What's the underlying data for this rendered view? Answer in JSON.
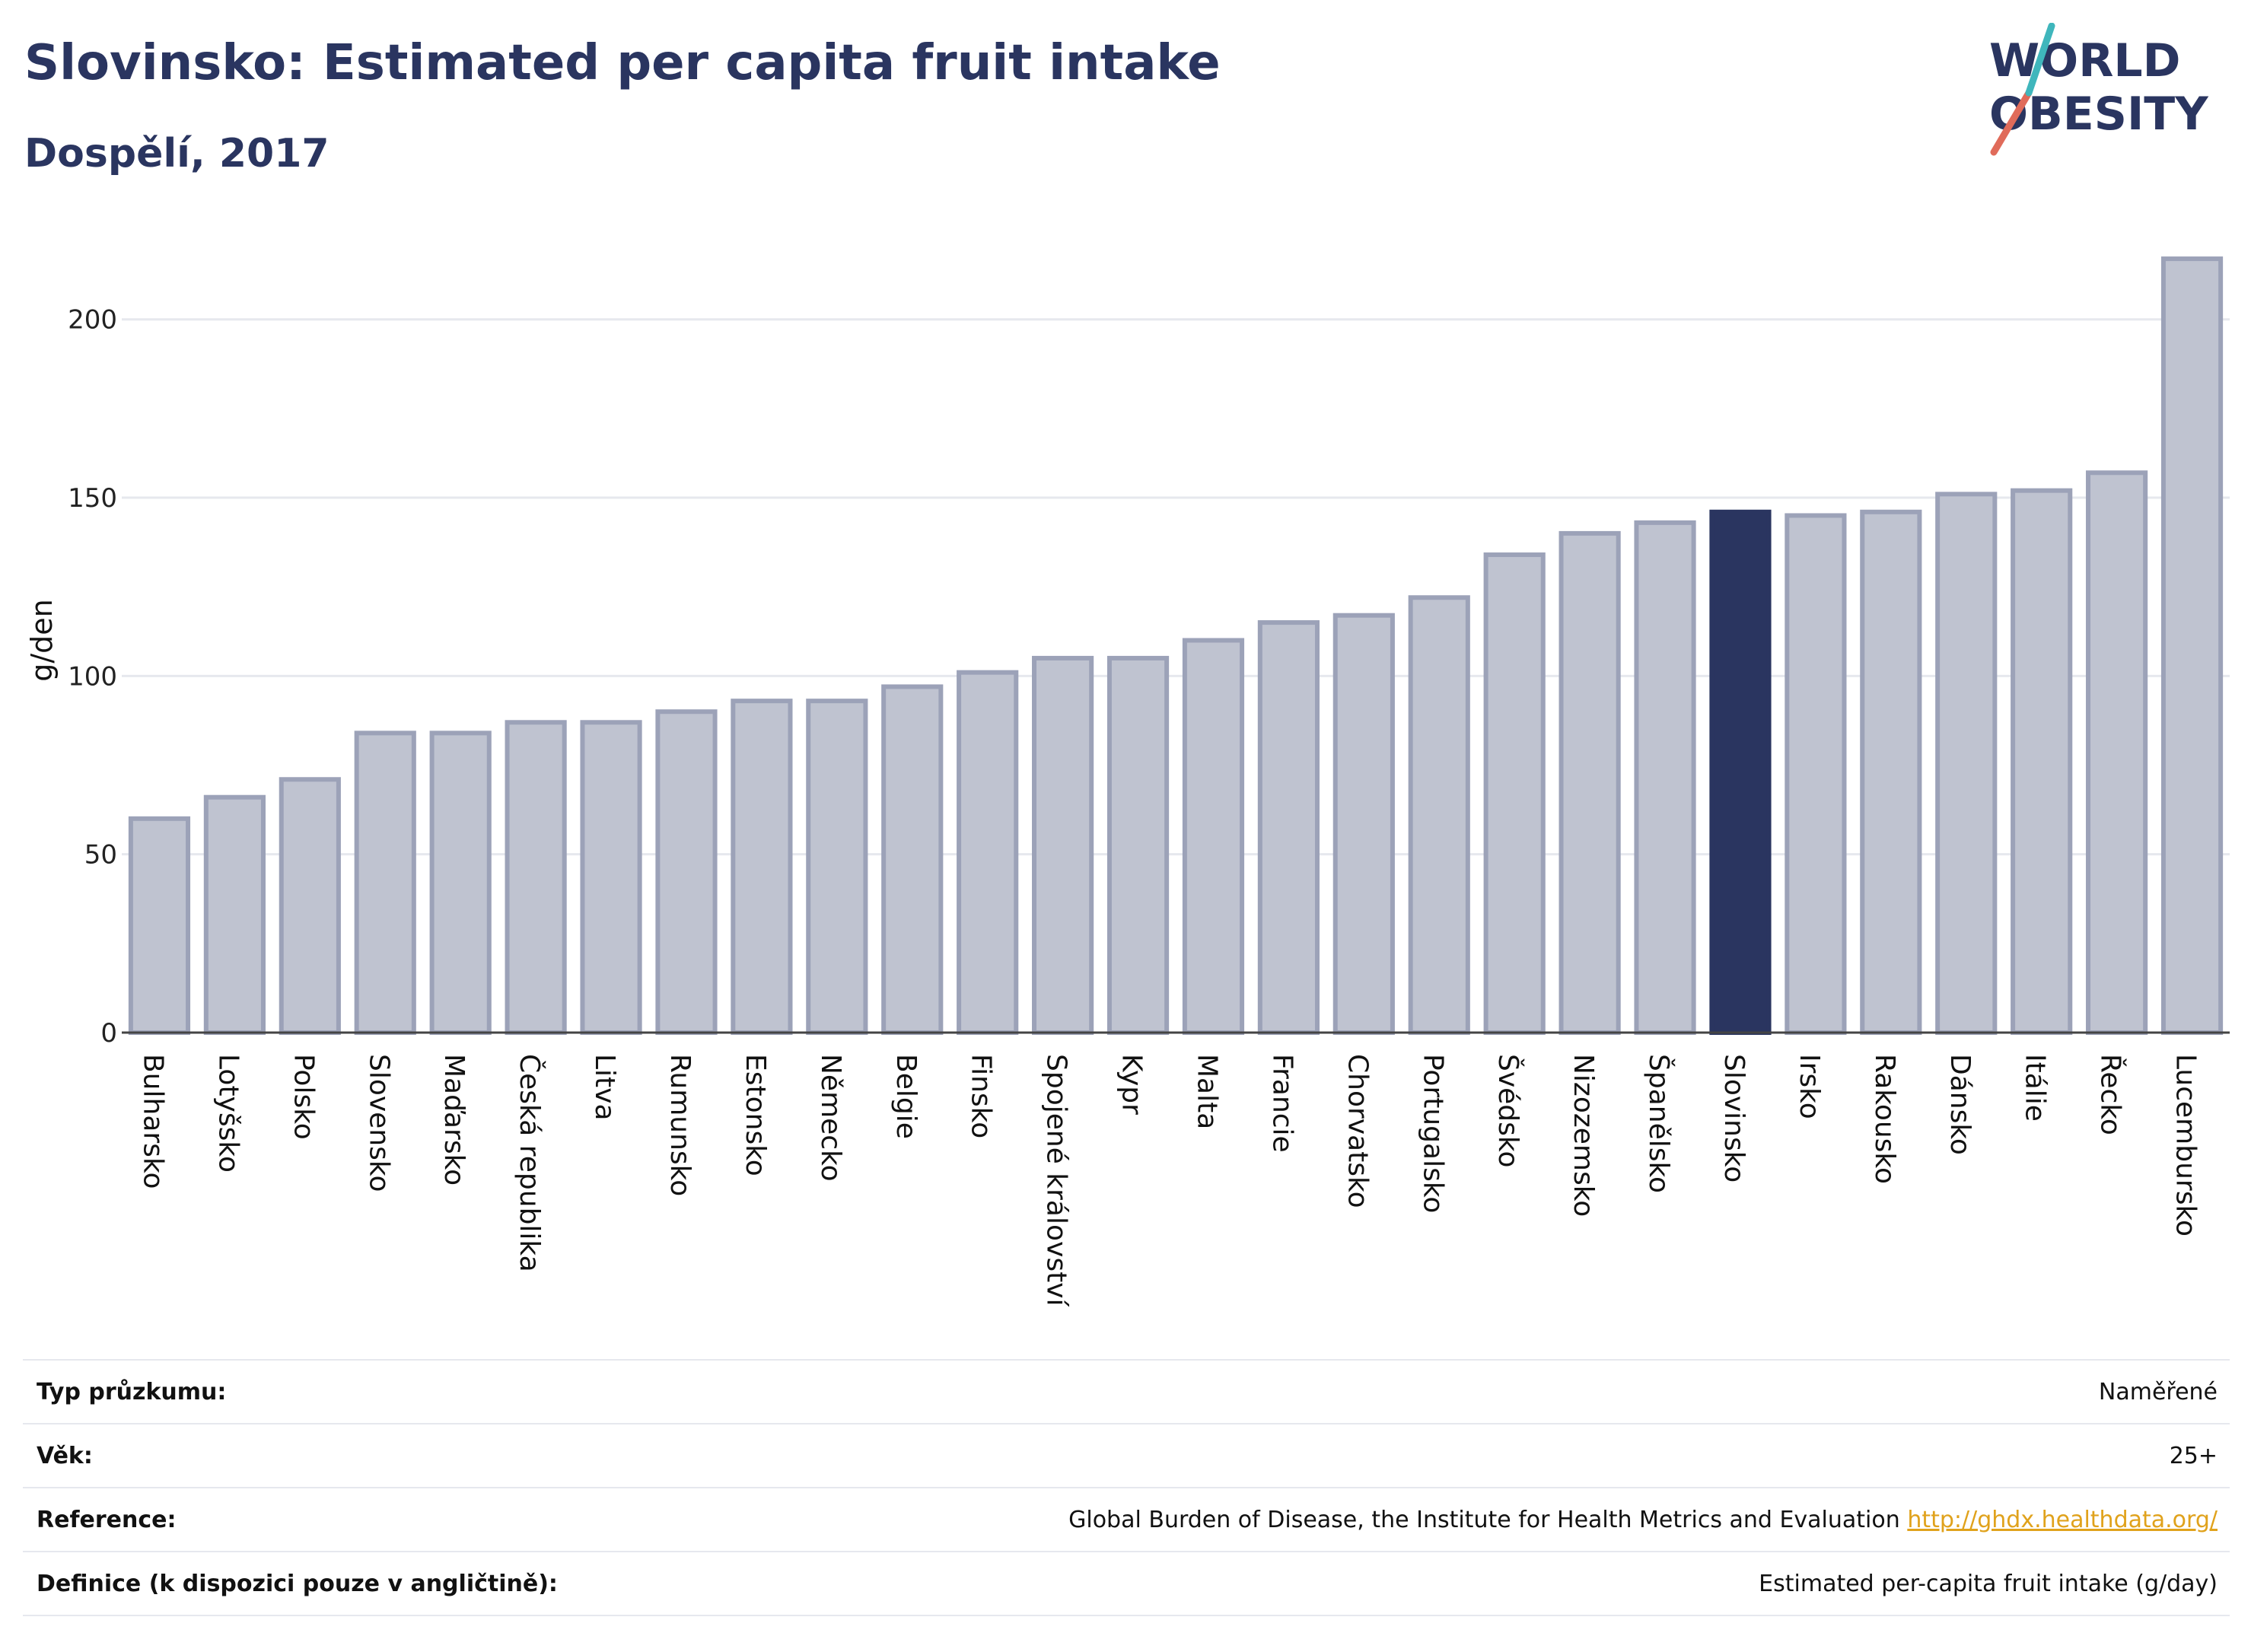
{
  "header": {
    "title": "Slovinsko: Estimated per capita fruit intake",
    "subtitle": "Dospělí, 2017"
  },
  "logo": {
    "line1": "WORLD",
    "line2": "OBESITY"
  },
  "colors": {
    "highlight_bar": "#2a3560",
    "other_bar_fill": "#bfc3d0",
    "other_bar_stroke": "#9ca2b8",
    "grid": "#e6e8ee",
    "text": "#2a3560",
    "link": "#e0a21c"
  },
  "chart_data": {
    "type": "bar",
    "title": "Slovinsko: Estimated per capita fruit intake",
    "subtitle": "Dospělí, 2017",
    "xlabel": "",
    "ylabel": "g/den",
    "ylim": [
      0,
      220
    ],
    "yticks": [
      0,
      50,
      100,
      150,
      200
    ],
    "grid": true,
    "highlight": "Slovinsko",
    "categories": [
      "Bulharsko",
      "Lotyšsko",
      "Polsko",
      "Slovensko",
      "Maďarsko",
      "Česká republika",
      "Litva",
      "Rumunsko",
      "Estonsko",
      "Německo",
      "Belgie",
      "Finsko",
      "Spojené království",
      "Kypr",
      "Malta",
      "Francie",
      "Chorvatsko",
      "Portugalsko",
      "Švédsko",
      "Nizozemsko",
      "Španělsko",
      "Slovinsko",
      "Irsko",
      "Rakousko",
      "Dánsko",
      "Itálie",
      "Řecko",
      "Lucembursko"
    ],
    "values": [
      60,
      66,
      71,
      84,
      84,
      87,
      87,
      90,
      93,
      93,
      97,
      101,
      105,
      105,
      110,
      115,
      117,
      122,
      134,
      140,
      143,
      146,
      145,
      146,
      151,
      152,
      157,
      217
    ]
  },
  "info": {
    "survey_type_label": "Typ průzkumu:",
    "survey_type_value": "Naměřené",
    "age_label": "Věk:",
    "age_value": "25+",
    "reference_label": "Reference:",
    "reference_text": "Global Burden of Disease, the Institute for Health Metrics and Evaluation",
    "reference_link": "http://ghdx.healthdata.org/",
    "definition_label": "Definice (k dispozici pouze v angličtině):",
    "definition_value": "Estimated per-capita fruit intake (g/day)"
  }
}
